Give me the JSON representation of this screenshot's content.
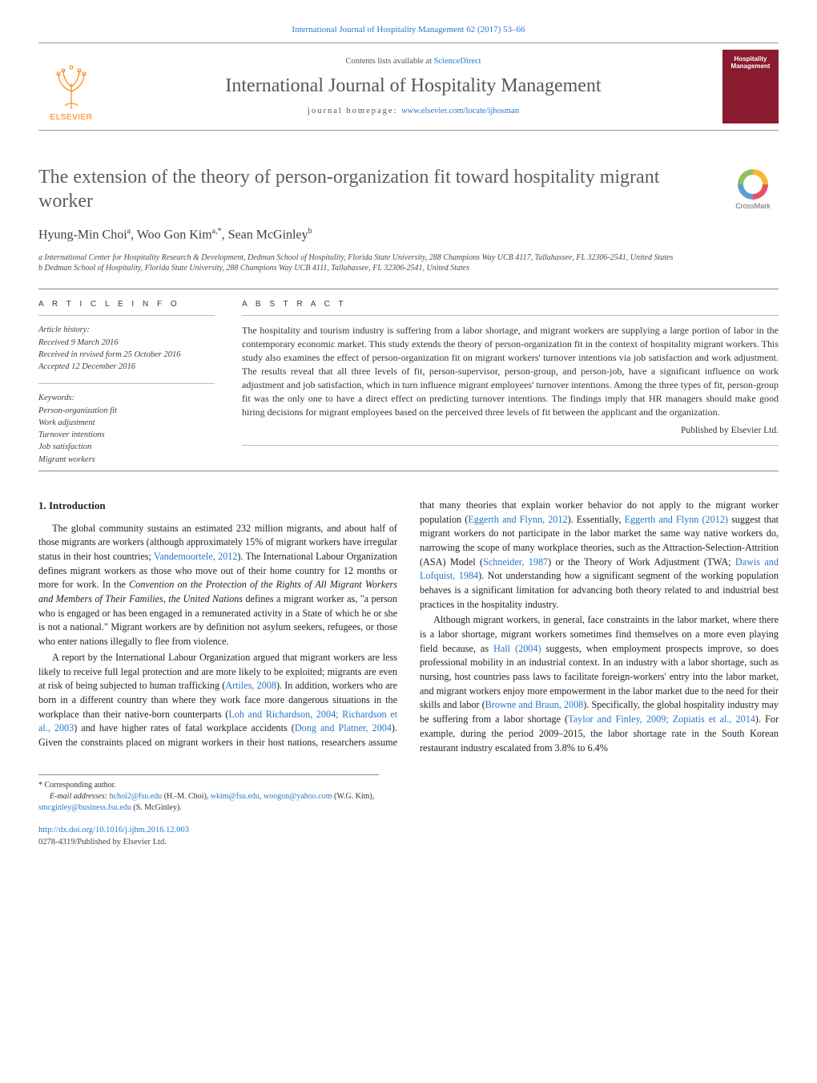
{
  "colors": {
    "link": "#2878c8",
    "text": "#333333",
    "title_gray": "#5d5d5d",
    "journal_red": "#8a1a2e",
    "elsevier_orange": "#ff7a00",
    "rule": "#888888"
  },
  "fonts": {
    "serif": "Georgia, 'Times New Roman', serif",
    "sans": "Arial, sans-serif",
    "title_size_pt": 24,
    "body_size_pt": 12,
    "small_size_pt": 10
  },
  "header": {
    "top_citation": "International Journal of Hospitality Management 62 (2017) 53–66",
    "contents_prefix": "Contents lists available at ",
    "contents_link": "ScienceDirect",
    "journal_name": "International Journal of Hospitality Management",
    "homepage_label": "journal homepage: ",
    "homepage_url": "www.elsevier.com/locate/ijhosman",
    "elsevier_word": "ELSEVIER",
    "cover_title_line1": "Hospitality",
    "cover_title_line2": "Management"
  },
  "crossmark": {
    "label": "CrossMark"
  },
  "article": {
    "title": "The extension of the theory of person-organization fit toward hospitality migrant worker",
    "authors_html": "Hyung-Min Choi",
    "author1": "Hyung-Min Choi",
    "author1_sup": "a",
    "author2": "Woo Gon Kim",
    "author2_sup": "a,*",
    "author3": "Sean McGinley",
    "author3_sup": "b",
    "affiliations": {
      "a": "a International Center for Hospitality Research & Development, Dedman School of Hospitality, Florida State University, 288 Champions Way UCB 4117, Tallahassee, FL 32306-2541, United States",
      "b": "b Dedman School of Hospitality, Florida State University, 288 Champions Way UCB 4111, Tallahassee, FL 32306-2541, United States"
    }
  },
  "info": {
    "heading": "A R T I C L E   I N F O",
    "history_head": "Article history:",
    "received": "Received 9 March 2016",
    "revised": "Received in revised form 25 October 2016",
    "accepted": "Accepted 12 December 2016",
    "keywords_head": "Keywords:",
    "keywords": [
      "Person-organization fit",
      "Work adjustment",
      "Turnover intentions",
      "Job satisfaction",
      "Migrant workers"
    ]
  },
  "abstract": {
    "heading": "A B S T R A C T",
    "text": "The hospitality and tourism industry is suffering from a labor shortage, and migrant workers are supplying a large portion of labor in the contemporary economic market. This study extends the theory of person-organization fit in the context of hospitality migrant workers. This study also examines the effect of person-organization fit on migrant workers' turnover intentions via job satisfaction and work adjustment. The results reveal that all three levels of fit, person-supervisor, person-group, and person-job, have a significant influence on work adjustment and job satisfaction, which in turn influence migrant employees' turnover intentions. Among the three types of fit, person-group fit was the only one to have a direct effect on predicting turnover intentions. The findings imply that HR managers should make good hiring decisions for migrant employees based on the perceived three levels of fit between the applicant and the organization.",
    "publisher_line": "Published by Elsevier Ltd."
  },
  "body": {
    "section1_heading": "1.  Introduction",
    "p1": "The global community sustains an estimated 232 million migrants, and about half of those migrants are workers (although approximately 15% of migrant workers have irregular status in their host countries; Vandemoortele, 2012). The International Labour Organization defines migrant workers as those who move out of their home country for 12 months or more for work. In the Convention on the Protection of the Rights of All Migrant Workers and Members of Their Families, the United Nations defines a migrant worker as, \"a person who is engaged or has been engaged in a remunerated activity in a State of which he or she is not a national.\" Migrant workers are by definition not asylum seekers, refugees, or those who enter nations illegally to flee from violence.",
    "p2": "A report by the International Labour Organization argued that migrant workers are less likely to receive full legal protection and are more likely to be exploited; migrants are even at risk of being subjected to human trafficking (Artiles, 2008). In addition, workers who are born in a different country than where they work face more dangerous situations in the workplace than their native-born counterparts (Loh and Richardson, 2004; Richardson et al., 2003) and have higher rates of fatal workplace accidents (Dong and Platner, 2004). Given the constraints placed on migrant workers in their host nations, researchers assume that many theories that explain worker behavior do not apply to the migrant worker population (Eggerth and Flynn, 2012). Essentially, Eggerth and Flynn (2012) suggest that migrant workers do not participate in the labor market the same way native workers do, narrowing the scope of many workplace theories, such as the Attraction-Selection-Attrition (ASA) Model (Schneider, 1987) or the Theory of Work Adjustment (TWA; Dawis and Lofquist, 1984). Not understanding how a significant segment of the working population behaves is a significant limitation for advancing both theory related to and industrial best practices in the hospitality industry.",
    "p3": "Although migrant workers, in general, face constraints in the labor market, where there is a labor shortage, migrant workers sometimes find themselves on a more even playing field because, as Hall (2004) suggests, when employment prospects improve, so does professional mobility in an industrial context. In an industry with a labor shortage, such as nursing, host countries pass laws to facilitate foreign-workers' entry into the labor market, and migrant workers enjoy more empowerment in the labor market due to the need for their skills and labor (Browne and Braun, 2008). Specifically, the global hospitality industry may be suffering from a labor shortage (Taylor and Finley, 2009; Zopiatis et al., 2014). For example, during the period 2009–2015, the labor shortage rate in the South Korean restaurant industry escalated from 3.8% to 6.4%"
  },
  "footnotes": {
    "corresponding": "* Corresponding author.",
    "emails_label": "E-mail addresses: ",
    "email1": "hchoi2@fsu.edu",
    "email1_who": "(H.-M. Choi), ",
    "email2": "wkim@fsu.edu",
    "email2_who": ", ",
    "email3": "woogon@yahoo.com",
    "email3_who": "(W.G. Kim), ",
    "email4": "smcginley@business.fsu.edu",
    "email4_who": "(S. McGinley)."
  },
  "doi": {
    "url": "http://dx.doi.org/10.1016/j.ijhm.2016.12.003",
    "issn_line": "0278-4319/Published by Elsevier Ltd."
  }
}
